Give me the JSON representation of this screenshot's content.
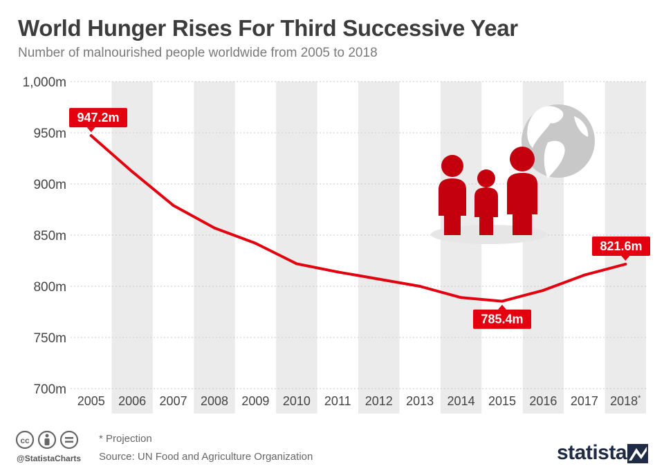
{
  "title": "World Hunger Rises For Third Successive Year",
  "subtitle": "Number of malnourished people worldwide from 2005 to 2018",
  "footer": {
    "handle": "@StatistaCharts",
    "note": "* Projection",
    "source": "Source: UN Food and Agriculture Organization",
    "brand": "statista"
  },
  "colors": {
    "line": "#e3000f",
    "label_bg": "#e3000f",
    "stripe": "#ebebeb",
    "icon_people": "#c4000e",
    "icon_globe": "#c8c8c8"
  },
  "icons": [
    "cc-icon",
    "attribution-icon",
    "no-derivatives-icon",
    "people-icon",
    "globe-icon",
    "statista-logo-icon"
  ],
  "chart_data": {
    "type": "line",
    "categories": [
      "2005",
      "2006",
      "2007",
      "2008",
      "2009",
      "2010",
      "2011",
      "2012",
      "2013",
      "2014",
      "2015",
      "2016",
      "2017",
      "2018*"
    ],
    "series": [
      {
        "values": [
          947.2,
          912,
          879,
          857,
          842,
          822,
          814,
          807,
          800,
          789,
          785.4,
          796,
          811,
          821.6
        ]
      }
    ],
    "data_labels": [
      {
        "index": 0,
        "text": "947.2m",
        "placement": "above"
      },
      {
        "index": 10,
        "text": "785.4m",
        "placement": "below"
      },
      {
        "index": 13,
        "text": "821.6m",
        "placement": "above"
      }
    ],
    "yticks": [
      {
        "value": 700,
        "label": "700m"
      },
      {
        "value": 750,
        "label": "750m"
      },
      {
        "value": 800,
        "label": "800m"
      },
      {
        "value": 850,
        "label": "850m"
      },
      {
        "value": 900,
        "label": "900m"
      },
      {
        "value": 950,
        "label": "950m"
      },
      {
        "value": 1000,
        "label": "1,000m"
      }
    ],
    "ylim": [
      700,
      1000
    ],
    "grid": true,
    "alternating_column_stripes": true,
    "title": "World Hunger Rises For Third Successive Year",
    "xlabel": "",
    "ylabel": ""
  }
}
